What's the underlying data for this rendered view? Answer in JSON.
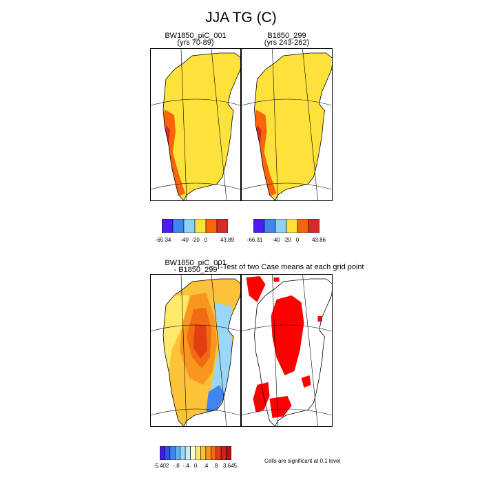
{
  "title": "JJA TG (C)",
  "chart_data": [
    {
      "type": "heatmap",
      "title_line1": "BW1850_piC_001",
      "title_line2": "(yrs 70-89)",
      "colorbar": {
        "colors": [
          "#4b1cf5",
          "#3f86f0",
          "#8fd0f5",
          "#fde23c",
          "#f9650a",
          "#d42a2a"
        ],
        "labels": [
          "-65.34",
          "-40",
          "-20",
          "0",
          "43.89"
        ]
      }
    },
    {
      "type": "heatmap",
      "title_line1": "B1850_299",
      "title_line2": "(yrs 243-262)",
      "colorbar": {
        "colors": [
          "#4b1cf5",
          "#3f86f0",
          "#8fd0f5",
          "#fde23c",
          "#f9650a",
          "#d42a2a"
        ],
        "labels": [
          "-66.31",
          "-40",
          "-20",
          "0",
          "43.86"
        ]
      }
    },
    {
      "type": "heatmap",
      "title_line1": "BW1850_piC_001",
      "title_line2": "- B1850_299",
      "colorbar": {
        "colors": [
          "#3d1ce0",
          "#2f55e8",
          "#3f86f0",
          "#5fb0f5",
          "#9ad6f7",
          "#c9ecf9",
          "#fff9d6",
          "#ffe86a",
          "#fbc23a",
          "#f9961e",
          "#f26a12",
          "#e33d12",
          "#cf1f1f",
          "#a81818"
        ],
        "labels": [
          "-5.402",
          "-.8",
          "-.4",
          "0",
          ".4",
          ".8",
          "3.645"
        ]
      }
    },
    {
      "type": "heatmap",
      "title_line1": "T-Test of two Case means at each grid point",
      "note": "Cells are significant at 0.1 level",
      "color": "#ff0000"
    }
  ]
}
